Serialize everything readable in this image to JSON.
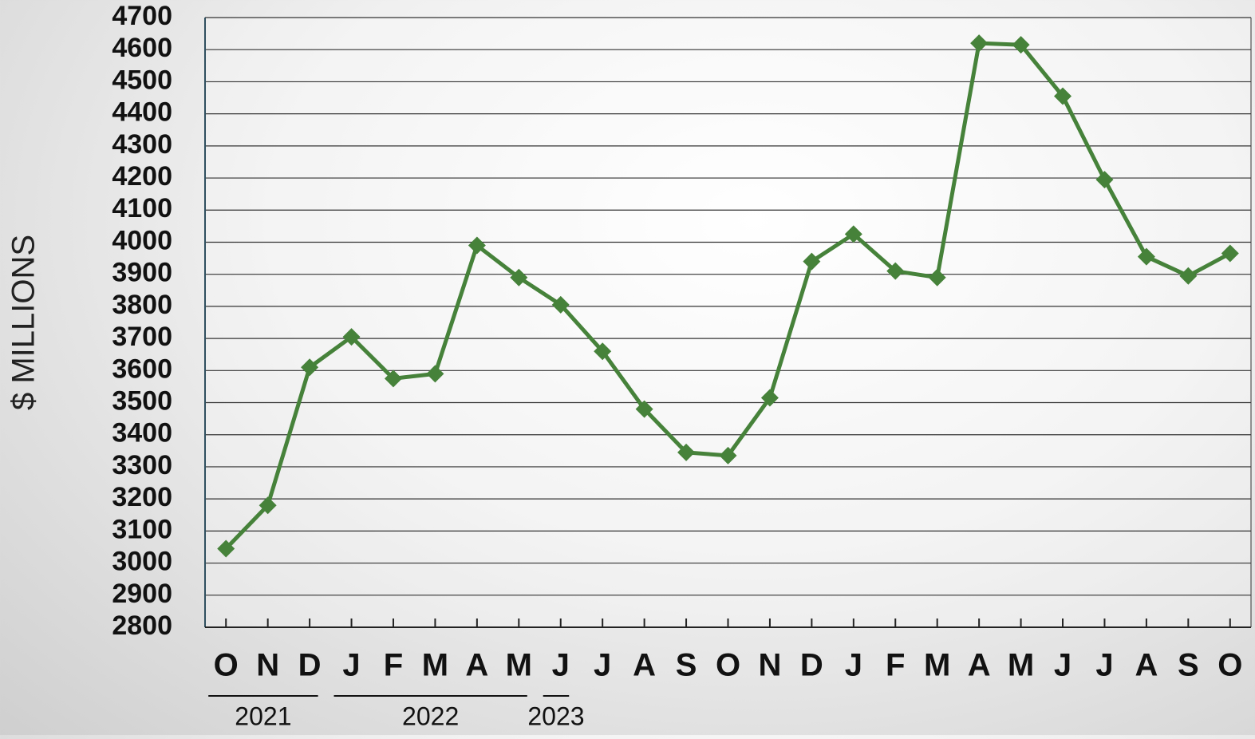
{
  "chart_data": {
    "type": "line",
    "y_label": "$ MILLIONS",
    "categories": [
      "O",
      "N",
      "D",
      "J",
      "F",
      "M",
      "A",
      "M",
      "J",
      "J",
      "A",
      "S",
      "O",
      "N",
      "D",
      "J",
      "F",
      "M",
      "A",
      "M",
      "J",
      "J",
      "A",
      "S",
      "O"
    ],
    "year_groups": [
      "2021",
      "2022",
      "2023"
    ],
    "series": [
      {
        "name": "Value",
        "color": "#46823a",
        "values": [
          3045,
          3180,
          3610,
          3705,
          3575,
          3590,
          3990,
          3890,
          3805,
          3660,
          3480,
          3345,
          3335,
          3515,
          3940,
          4025,
          3910,
          3890,
          4620,
          4615,
          4455,
          4195,
          3955,
          3895,
          3965
        ]
      }
    ],
    "ylim": [
      2800,
      4700
    ],
    "yticks": [
      2800,
      2900,
      3000,
      3100,
      3200,
      3300,
      3400,
      3500,
      3600,
      3700,
      3800,
      3900,
      4000,
      4100,
      4200,
      4300,
      4400,
      4500,
      4600,
      4700
    ],
    "grid": true
  }
}
